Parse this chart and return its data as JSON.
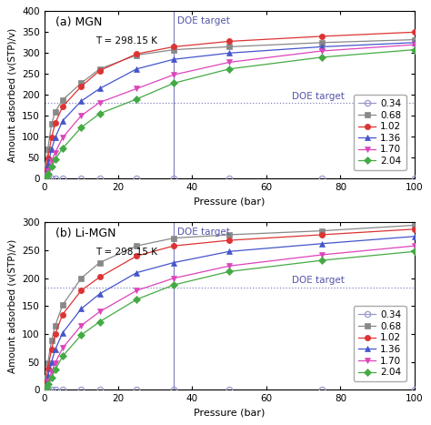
{
  "panel_a": {
    "title": "(a) MGN",
    "temp_label": "T = 298.15 K",
    "ylabel": "Amount adsorbed (v(STP)/v)",
    "xlabel": "Pressure (bar)",
    "ylim": [
      0,
      400
    ],
    "xlim": [
      0,
      100
    ],
    "yticks": [
      0,
      50,
      100,
      150,
      200,
      250,
      300,
      350,
      400
    ],
    "xticks": [
      0,
      20,
      40,
      60,
      80,
      100
    ],
    "doe_x": 35,
    "doe_y": 180,
    "series": [
      {
        "label": "0.34",
        "color": "#9999cc",
        "marker": "o",
        "fillstyle": "none",
        "x": [
          0.5,
          1,
          2,
          3,
          5,
          10,
          15,
          25,
          35,
          50,
          75,
          100
        ],
        "y": [
          0,
          0,
          0,
          0,
          0,
          0,
          0,
          0,
          0,
          0,
          0,
          0
        ]
      },
      {
        "label": "0.68",
        "color": "#888888",
        "marker": "s",
        "fillstyle": "full",
        "x": [
          0.5,
          1,
          2,
          3,
          5,
          10,
          15,
          25,
          35,
          50,
          75,
          100
        ],
        "y": [
          32,
          70,
          130,
          160,
          188,
          228,
          262,
          295,
          308,
          315,
          325,
          332
        ]
      },
      {
        "label": "1.02",
        "color": "#dd3333",
        "marker": "o",
        "fillstyle": "full",
        "x": [
          0.5,
          1,
          2,
          3,
          5,
          10,
          15,
          25,
          35,
          50,
          75,
          100
        ],
        "y": [
          22,
          48,
          98,
          132,
          172,
          220,
          258,
          298,
          315,
          328,
          340,
          350
        ]
      },
      {
        "label": "1.36",
        "color": "#4455cc",
        "marker": "^",
        "fillstyle": "full",
        "x": [
          0.5,
          1,
          2,
          3,
          5,
          10,
          15,
          25,
          35,
          50,
          75,
          100
        ],
        "y": [
          15,
          33,
          70,
          98,
          138,
          185,
          215,
          262,
          285,
          300,
          315,
          325
        ]
      },
      {
        "label": "1.70",
        "color": "#dd44bb",
        "marker": "v",
        "fillstyle": "full",
        "x": [
          0.5,
          1,
          2,
          3,
          5,
          10,
          15,
          25,
          35,
          50,
          75,
          100
        ],
        "y": [
          8,
          18,
          42,
          62,
          98,
          150,
          182,
          215,
          248,
          278,
          305,
          320
        ]
      },
      {
        "label": "2.04",
        "color": "#44aa44",
        "marker": "D",
        "fillstyle": "full",
        "x": [
          0.5,
          1,
          2,
          3,
          5,
          10,
          15,
          25,
          35,
          50,
          75,
          100
        ],
        "y": [
          5,
          12,
          28,
          46,
          72,
          122,
          155,
          190,
          228,
          262,
          290,
          308
        ]
      }
    ]
  },
  "panel_b": {
    "title": "(b) Li-MGN",
    "temp_label": "T = 298.15 K",
    "ylabel": "Amount adsorbed (v(STP)/v)",
    "xlabel": "Pressure (bar)",
    "ylim": [
      0,
      300
    ],
    "xlim": [
      0,
      100
    ],
    "yticks": [
      0,
      50,
      100,
      150,
      200,
      250,
      300
    ],
    "xticks": [
      0,
      20,
      40,
      60,
      80,
      100
    ],
    "doe_x": 35,
    "doe_y": 183,
    "series": [
      {
        "label": "0.34",
        "color": "#9999cc",
        "marker": "o",
        "fillstyle": "none",
        "x": [
          0.5,
          1,
          2,
          3,
          5,
          10,
          15,
          25,
          35,
          50,
          75,
          100
        ],
        "y": [
          0,
          0,
          0,
          0,
          0,
          0,
          0,
          0,
          0,
          0,
          0,
          0
        ]
      },
      {
        "label": "0.68",
        "color": "#888888",
        "marker": "s",
        "fillstyle": "full",
        "x": [
          0.5,
          1,
          2,
          3,
          5,
          10,
          15,
          25,
          35,
          50,
          75,
          100
        ],
        "y": [
          22,
          48,
          88,
          115,
          152,
          200,
          228,
          258,
          272,
          278,
          285,
          295
        ]
      },
      {
        "label": "1.02",
        "color": "#dd3333",
        "marker": "o",
        "fillstyle": "full",
        "x": [
          0.5,
          1,
          2,
          3,
          5,
          10,
          15,
          25,
          35,
          50,
          75,
          100
        ],
        "y": [
          15,
          38,
          72,
          100,
          135,
          178,
          202,
          240,
          258,
          268,
          278,
          288
        ]
      },
      {
        "label": "1.36",
        "color": "#4455cc",
        "marker": "^",
        "fillstyle": "full",
        "x": [
          0.5,
          1,
          2,
          3,
          5,
          10,
          15,
          25,
          35,
          50,
          75,
          100
        ],
        "y": [
          10,
          25,
          50,
          72,
          102,
          145,
          172,
          210,
          228,
          248,
          262,
          275
        ]
      },
      {
        "label": "1.70",
        "color": "#dd44bb",
        "marker": "v",
        "fillstyle": "full",
        "x": [
          0.5,
          1,
          2,
          3,
          5,
          10,
          15,
          25,
          35,
          50,
          75,
          100
        ],
        "y": [
          6,
          15,
          32,
          48,
          75,
          115,
          140,
          178,
          200,
          222,
          242,
          258
        ]
      },
      {
        "label": "2.04",
        "color": "#44aa44",
        "marker": "D",
        "fillstyle": "full",
        "x": [
          0.5,
          1,
          2,
          3,
          5,
          10,
          15,
          25,
          35,
          50,
          75,
          100
        ],
        "y": [
          4,
          10,
          22,
          36,
          60,
          98,
          122,
          162,
          188,
          212,
          232,
          248
        ]
      }
    ]
  },
  "background_color": "#ffffff",
  "doe_line_color": "#7777bb",
  "doe_text_color": "#5555aa",
  "legend_fontsize": 7.5,
  "axis_fontsize": 8,
  "title_fontsize": 9,
  "tick_fontsize": 7.5
}
